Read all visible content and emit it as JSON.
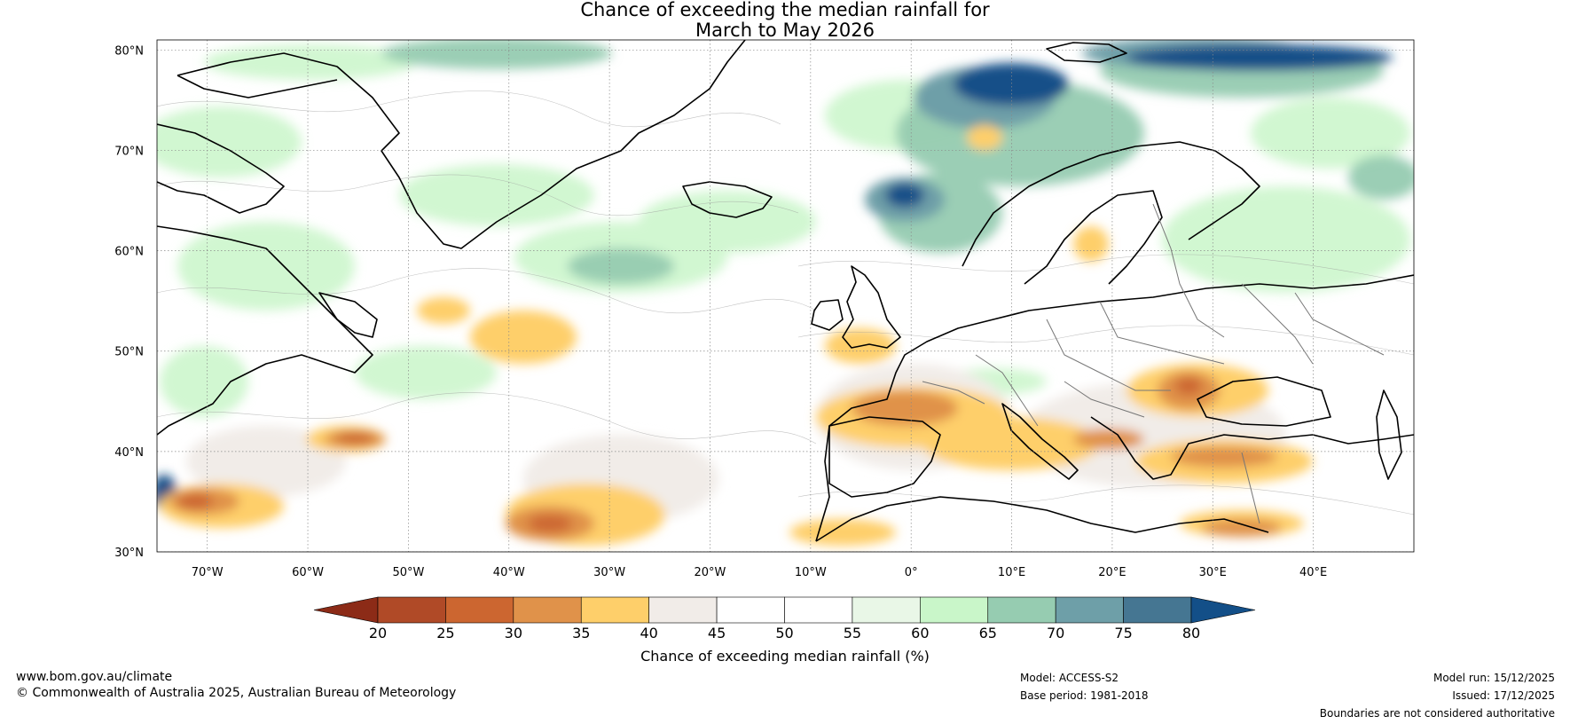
{
  "title": {
    "line1": "Chance of exceeding the median rainfall for",
    "line2": "March to May 2026"
  },
  "map": {
    "region": "North Atlantic and Europe",
    "lat_labels": [
      "80°N",
      "70°N",
      "60°N",
      "50°N",
      "40°N",
      "30°N"
    ],
    "lon_labels": [
      "70°W",
      "60°W",
      "50°W",
      "40°W",
      "30°W",
      "20°W",
      "10°W",
      "0°",
      "10°E",
      "20°E",
      "30°E",
      "40°E"
    ],
    "lat_range": [
      30,
      81
    ],
    "lon_range": [
      -75,
      50
    ]
  },
  "colorbar": {
    "title": "Chance of exceeding median rainfall (%)",
    "ticks": [
      "20",
      "25",
      "30",
      "35",
      "40",
      "45",
      "50",
      "55",
      "60",
      "65",
      "70",
      "75",
      "80"
    ],
    "colors": [
      "#8c2b17",
      "#b04a27",
      "#cc6630",
      "#e0924a",
      "#fecf6a",
      "#f1ece8",
      "#ffffff",
      "#ffffff",
      "#e9f7e7",
      "#c9f6c9",
      "#96ccb1",
      "#6e9fa8",
      "#457692",
      "#134f88"
    ]
  },
  "footer": {
    "website": "www.bom.gov.au/climate",
    "copyright": "© Commonwealth of Australia 2025, Australian Bureau of Meteorology",
    "model": "Model: ACCESS-S2",
    "base_period": "Base period: 1981-2018",
    "model_run": "Model run: 15/12/2025",
    "issued": "Issued: 17/12/2025",
    "disclaimer": "Boundaries are not considered authoritative"
  }
}
